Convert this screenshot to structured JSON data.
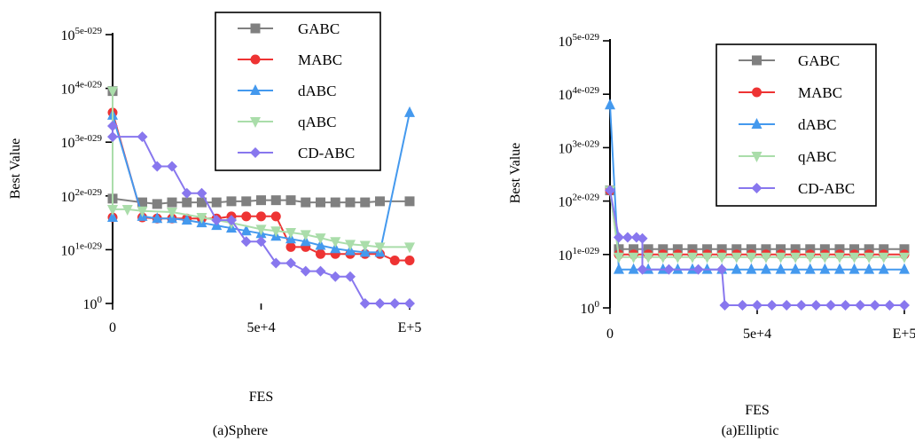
{
  "chart_data": [
    {
      "type": "line",
      "panel_label": "(a)Sphere",
      "xlabel": "FES",
      "ylabel": "Best Value",
      "y_scale": "log",
      "xlim": [
        0,
        100000
      ],
      "xticks": [
        "0",
        "5e+4",
        "E+5"
      ],
      "ytick_bases": [
        "10",
        "10",
        "10",
        "10",
        "10",
        "10"
      ],
      "ytick_exps": [
        "0",
        "1e-029",
        "2e-029",
        "3e-029",
        "4e-029",
        "5e-029"
      ],
      "ylim_levels": [
        0,
        5
      ],
      "legend_position": "top-right",
      "series": [
        {
          "name": "GABC",
          "color": "#808080",
          "marker": "square",
          "x": [
            0,
            0,
            10000,
            15000,
            20000,
            25000,
            30000,
            35000,
            40000,
            45000,
            50000,
            55000,
            60000,
            65000,
            70000,
            75000,
            80000,
            85000,
            90000,
            100000
          ],
          "y": [
            3.95,
            1.95,
            1.88,
            1.85,
            1.88,
            1.88,
            1.88,
            1.88,
            1.9,
            1.9,
            1.92,
            1.92,
            1.92,
            1.88,
            1.88,
            1.88,
            1.88,
            1.88,
            1.9,
            1.9
          ]
        },
        {
          "name": "MABC",
          "color": "#ee3333",
          "marker": "circle",
          "x": [
            0,
            0,
            10000,
            15000,
            20000,
            25000,
            30000,
            35000,
            40000,
            45000,
            50000,
            55000,
            60000,
            65000,
            70000,
            75000,
            80000,
            85000,
            90000,
            95000,
            100000
          ],
          "y": [
            1.6,
            3.55,
            1.6,
            1.58,
            1.58,
            1.58,
            1.58,
            1.58,
            1.62,
            1.62,
            1.62,
            1.62,
            1.05,
            1.05,
            0.92,
            0.92,
            0.92,
            0.92,
            0.92,
            0.8,
            0.8
          ]
        },
        {
          "name": "dABC",
          "color": "#4499ee",
          "marker": "triangle",
          "x": [
            0,
            0,
            10000,
            15000,
            20000,
            25000,
            30000,
            35000,
            40000,
            45000,
            50000,
            55000,
            60000,
            65000,
            70000,
            75000,
            80000,
            85000,
            90000,
            100000
          ],
          "y": [
            1.6,
            3.5,
            1.62,
            1.58,
            1.58,
            1.55,
            1.5,
            1.45,
            1.4,
            1.35,
            1.3,
            1.25,
            1.2,
            1.15,
            1.08,
            1.02,
            0.98,
            0.95,
            0.95,
            3.55
          ]
        },
        {
          "name": "qABC",
          "color": "#aaddaa",
          "marker": "triangle-down",
          "x": [
            0,
            0,
            5000,
            10000,
            20000,
            30000,
            40000,
            50000,
            55000,
            60000,
            65000,
            70000,
            75000,
            80000,
            85000,
            90000,
            100000
          ],
          "y": [
            3.95,
            1.75,
            1.75,
            1.72,
            1.7,
            1.6,
            1.5,
            1.38,
            1.35,
            1.32,
            1.28,
            1.22,
            1.15,
            1.1,
            1.08,
            1.05,
            1.05
          ]
        },
        {
          "name": "CD-ABC",
          "color": "#8877ee",
          "marker": "diamond",
          "x": [
            0,
            0,
            10000,
            15000,
            20000,
            25000,
            30000,
            35000,
            40000,
            45000,
            50000,
            55000,
            60000,
            65000,
            70000,
            75000,
            80000,
            85000,
            90000,
            95000,
            100000
          ],
          "y": [
            3.3,
            3.1,
            3.1,
            2.55,
            2.55,
            2.05,
            2.05,
            1.55,
            1.55,
            1.15,
            1.15,
            0.75,
            0.75,
            0.6,
            0.6,
            0.5,
            0.5,
            0.0,
            0.0,
            0.0,
            0.0
          ]
        }
      ]
    },
    {
      "type": "line",
      "panel_label": "(a)Elliptic",
      "xlabel": "FES",
      "ylabel": "Best Value",
      "y_scale": "log",
      "xlim": [
        0,
        100000
      ],
      "xticks": [
        "0",
        "5e+4",
        "E+5"
      ],
      "ytick_bases": [
        "10",
        "10",
        "10",
        "10",
        "10",
        "10"
      ],
      "ytick_exps": [
        "0",
        "1e-029",
        "2e-029",
        "3e-029",
        "4e-029",
        "5e-029"
      ],
      "ylim_levels": [
        0,
        5
      ],
      "legend_position": "top-right",
      "series": [
        {
          "name": "GABC",
          "color": "#808080",
          "marker": "square",
          "x": [
            0,
            3000,
            8000,
            13000,
            18000,
            23000,
            28000,
            33000,
            38000,
            43000,
            48000,
            53000,
            58000,
            63000,
            68000,
            73000,
            78000,
            83000,
            88000,
            93000,
            100000
          ],
          "y": [
            2.2,
            1.1,
            1.1,
            1.1,
            1.1,
            1.1,
            1.1,
            1.1,
            1.1,
            1.1,
            1.1,
            1.1,
            1.1,
            1.1,
            1.1,
            1.1,
            1.1,
            1.1,
            1.1,
            1.1,
            1.1
          ]
        },
        {
          "name": "MABC",
          "color": "#ee3333",
          "marker": "circle",
          "x": [
            0,
            3000,
            8000,
            13000,
            18000,
            23000,
            28000,
            33000,
            38000,
            43000,
            48000,
            53000,
            58000,
            63000,
            68000,
            73000,
            78000,
            83000,
            88000,
            93000,
            100000
          ],
          "y": [
            2.2,
            1.0,
            1.0,
            1.0,
            1.0,
            1.0,
            1.0,
            1.0,
            1.0,
            1.0,
            1.0,
            1.0,
            1.0,
            1.0,
            1.0,
            1.0,
            1.0,
            1.0,
            1.0,
            1.0,
            1.0
          ]
        },
        {
          "name": "dABC",
          "color": "#4499ee",
          "marker": "triangle",
          "x": [
            0,
            3000,
            8000,
            13000,
            18000,
            23000,
            28000,
            33000,
            38000,
            43000,
            48000,
            53000,
            58000,
            63000,
            68000,
            73000,
            78000,
            83000,
            88000,
            93000,
            100000
          ],
          "y": [
            3.8,
            0.72,
            0.72,
            0.72,
            0.72,
            0.72,
            0.72,
            0.72,
            0.72,
            0.72,
            0.72,
            0.72,
            0.72,
            0.72,
            0.72,
            0.72,
            0.72,
            0.72,
            0.72,
            0.72,
            0.72
          ]
        },
        {
          "name": "qABC",
          "color": "#aaddaa",
          "marker": "triangle-down",
          "x": [
            0,
            3000,
            8000,
            13000,
            18000,
            23000,
            28000,
            33000,
            38000,
            43000,
            48000,
            53000,
            58000,
            63000,
            68000,
            73000,
            78000,
            83000,
            88000,
            93000,
            100000
          ],
          "y": [
            2.2,
            0.95,
            0.95,
            0.95,
            0.95,
            0.95,
            0.95,
            0.95,
            0.95,
            0.95,
            0.95,
            0.95,
            0.95,
            0.95,
            0.95,
            0.95,
            0.95,
            0.95,
            0.95,
            0.95,
            0.95
          ]
        },
        {
          "name": "CD-ABC",
          "color": "#8877ee",
          "marker": "diamond",
          "x": [
            0,
            3000,
            6000,
            9000,
            11000,
            11000,
            20000,
            30000,
            38000,
            39000,
            45000,
            50000,
            55000,
            60000,
            65000,
            70000,
            75000,
            80000,
            85000,
            90000,
            95000,
            100000
          ],
          "y": [
            2.2,
            1.32,
            1.32,
            1.32,
            1.3,
            0.72,
            0.72,
            0.72,
            0.72,
            0.05,
            0.05,
            0.05,
            0.05,
            0.05,
            0.05,
            0.05,
            0.05,
            0.05,
            0.05,
            0.05,
            0.05,
            0.05
          ]
        }
      ]
    }
  ]
}
